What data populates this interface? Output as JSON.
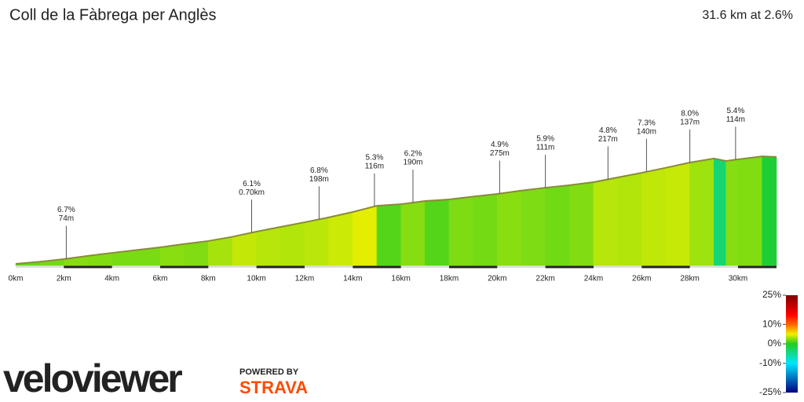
{
  "chart_data": {
    "type": "elevation-profile",
    "title": "Coll de la Fàbrega per Anglès",
    "summary": "31.6 km at 2.6%",
    "x": [
      0,
      1,
      2,
      3,
      4,
      5,
      6,
      7,
      8,
      9,
      10,
      11,
      12,
      13,
      14,
      15,
      16,
      17,
      18,
      19,
      20,
      21,
      22,
      23,
      24,
      25,
      26,
      27,
      28,
      29,
      29.5,
      30,
      31,
      31.6
    ],
    "elevation": [
      0,
      16,
      36,
      60,
      83,
      104,
      125,
      150,
      173,
      205,
      244,
      280,
      315,
      352,
      393,
      440,
      452,
      476,
      488,
      510,
      530,
      555,
      577,
      596,
      619,
      655,
      690,
      728,
      768,
      798,
      780,
      792,
      815,
      810
    ],
    "xlim": [
      0,
      31.6
    ],
    "xticks": [
      {
        "value": 0,
        "label": "0km"
      },
      {
        "value": 2,
        "label": "2km"
      },
      {
        "value": 4,
        "label": "4km"
      },
      {
        "value": 6,
        "label": "6km"
      },
      {
        "value": 8,
        "label": "8km"
      },
      {
        "value": 10,
        "label": "10km"
      },
      {
        "value": 12,
        "label": "12km"
      },
      {
        "value": 14,
        "label": "14km"
      },
      {
        "value": 16,
        "label": "16km"
      },
      {
        "value": 18,
        "label": "18km"
      },
      {
        "value": 20,
        "label": "20km"
      },
      {
        "value": 22,
        "label": "22km"
      },
      {
        "value": 24,
        "label": "24km"
      },
      {
        "value": 26,
        "label": "26km"
      },
      {
        "value": 28,
        "label": "28km"
      },
      {
        "value": 30,
        "label": "30km"
      }
    ],
    "annotations": [
      {
        "x": 2.1,
        "grade": "6.7%",
        "length": "74m"
      },
      {
        "x": 9.8,
        "grade": "6.1%",
        "length": "0.70km"
      },
      {
        "x": 12.6,
        "grade": "6.8%",
        "length": "198m"
      },
      {
        "x": 14.9,
        "grade": "5.3%",
        "length": "116m"
      },
      {
        "x": 16.5,
        "grade": "6.2%",
        "length": "190m"
      },
      {
        "x": 20.1,
        "grade": "4.9%",
        "length": "275m"
      },
      {
        "x": 22,
        "grade": "5.9%",
        "length": "111m"
      },
      {
        "x": 24.6,
        "grade": "4.8%",
        "length": "217m"
      },
      {
        "x": 26.2,
        "grade": "7.3%",
        "length": "140m"
      },
      {
        "x": 28,
        "grade": "8.0%",
        "length": "137m"
      },
      {
        "x": 29.9,
        "grade": "5.4%",
        "length": "114m"
      }
    ],
    "colorscale": [
      {
        "value": -25,
        "color": "#000080"
      },
      {
        "value": -10,
        "color": "#00e5ff"
      },
      {
        "value": 0,
        "color": "#22cc22"
      },
      {
        "value": 5,
        "color": "#f0f000"
      },
      {
        "value": 10,
        "color": "#ff6600"
      },
      {
        "value": 15,
        "color": "#ff0000"
      },
      {
        "value": 25,
        "color": "#800000"
      }
    ],
    "legend_lim": [
      -25,
      25
    ],
    "legend_ticks": [
      {
        "value": 25,
        "label": "25%"
      },
      {
        "value": 10,
        "label": "10%"
      },
      {
        "value": 0,
        "label": "0%"
      },
      {
        "value": -10,
        "label": "-10%"
      },
      {
        "value": -25,
        "label": "-25%"
      }
    ],
    "brand": {
      "logo": "veloviewer",
      "powered_by": "POWERED BY",
      "partner": "STRAVA"
    }
  }
}
